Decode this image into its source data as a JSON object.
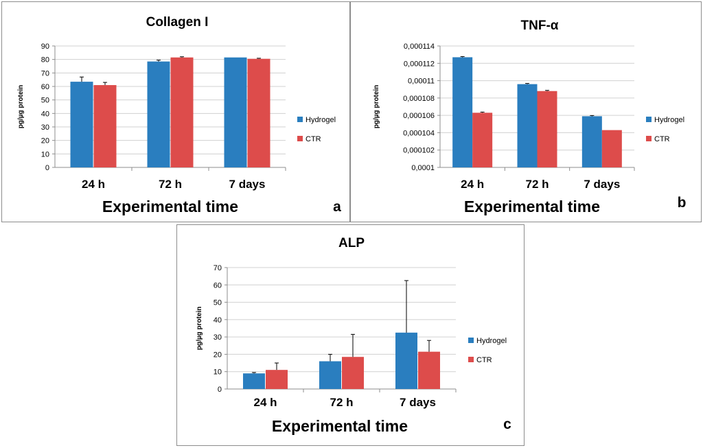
{
  "figure": {
    "colors": {
      "Hydrogel": "#2a7ebf",
      "CTR": "#dd4c4b"
    }
  },
  "chart_data": [
    {
      "panel": "a",
      "type": "bar",
      "title": "Collagen I",
      "ylabel": "pg/µg protein",
      "xlabel": "Experimental time",
      "categories": [
        "24 h",
        "72 h",
        "7 days"
      ],
      "ylim": [
        0,
        90
      ],
      "yticks": [
        "0",
        "10",
        "20",
        "30",
        "40",
        "50",
        "60",
        "70",
        "80",
        "90"
      ],
      "series": [
        {
          "name": "Hydrogel",
          "values": [
            63.5,
            78.5,
            81.5
          ],
          "errors": [
            3.5,
            1.0,
            0
          ]
        },
        {
          "name": "CTR",
          "values": [
            61,
            81.5,
            80.5
          ],
          "errors": [
            2.0,
            0.5,
            0.4
          ]
        }
      ],
      "legend": "right",
      "grid": true
    },
    {
      "panel": "b",
      "type": "bar",
      "title": "TNF-α",
      "ylabel": "pg/µg protein",
      "xlabel": "Experimental time",
      "categories": [
        "24 h",
        "72 h",
        "7 days"
      ],
      "ylim": [
        0.0001,
        0.000114
      ],
      "yticks": [
        "0,0001",
        "0,000102",
        "0,000104",
        "0,000106",
        "0,000108",
        "0,00011",
        "0,000112",
        "0,000114"
      ],
      "series": [
        {
          "name": "Hydrogel",
          "values": [
            0.0001127,
            0.0001096,
            0.0001059
          ],
          "errors": [
            8e-08,
            8e-08,
            8e-08
          ]
        },
        {
          "name": "CTR",
          "values": [
            0.0001063,
            0.0001088,
            0.0001043
          ],
          "errors": [
            8e-08,
            8e-08,
            0
          ]
        }
      ],
      "legend": "right",
      "grid": true
    },
    {
      "panel": "c",
      "type": "bar",
      "title": "ALP",
      "ylabel": "pg/µg protein",
      "xlabel": "Experimental time",
      "categories": [
        "24 h",
        "72 h",
        "7 days"
      ],
      "ylim": [
        0,
        70
      ],
      "yticks": [
        "0",
        "10",
        "20",
        "30",
        "40",
        "50",
        "60",
        "70"
      ],
      "series": [
        {
          "name": "Hydrogel",
          "values": [
            9,
            16,
            32.5
          ],
          "errors": [
            0.5,
            4.0,
            30.0
          ]
        },
        {
          "name": "CTR",
          "values": [
            11,
            18.5,
            21.5
          ],
          "errors": [
            4.0,
            13.0,
            6.5
          ]
        }
      ],
      "legend": "right",
      "grid": true
    }
  ]
}
